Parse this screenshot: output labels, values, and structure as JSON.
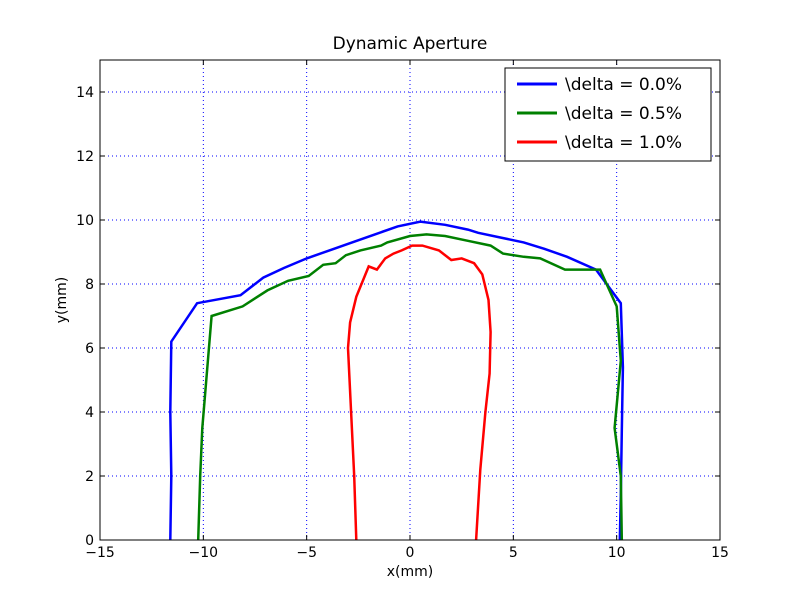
{
  "chart_data": {
    "type": "line",
    "title": "Dynamic Aperture",
    "xlabel": "x(mm)",
    "ylabel": "y(mm)",
    "xlim": [
      -15,
      15
    ],
    "ylim": [
      0,
      15
    ],
    "xticks": [
      -15,
      -10,
      -5,
      0,
      5,
      10,
      15
    ],
    "yticks": [
      0,
      2,
      4,
      6,
      8,
      10,
      12,
      14
    ],
    "xtick_labels": [
      "−15",
      "−10",
      "−5",
      "0",
      "5",
      "10",
      "15"
    ],
    "ytick_labels": [
      "0",
      "2",
      "4",
      "6",
      "8",
      "10",
      "12",
      "14"
    ],
    "grid": true,
    "legend_position": "top-right",
    "series": [
      {
        "name": "\\delta = 0.0%",
        "color": "#0000ff",
        "points": [
          [
            -11.6,
            0.0
          ],
          [
            -11.55,
            2.0
          ],
          [
            -11.6,
            4.0
          ],
          [
            -11.55,
            6.2
          ],
          [
            -10.3,
            7.4
          ],
          [
            -8.2,
            7.65
          ],
          [
            -7.1,
            8.2
          ],
          [
            -6.1,
            8.5
          ],
          [
            -5.0,
            8.8
          ],
          [
            -3.9,
            9.05
          ],
          [
            -2.8,
            9.3
          ],
          [
            -1.7,
            9.55
          ],
          [
            -0.6,
            9.8
          ],
          [
            0.5,
            9.95
          ],
          [
            1.7,
            9.85
          ],
          [
            2.8,
            9.7
          ],
          [
            3.3,
            9.6
          ],
          [
            4.4,
            9.45
          ],
          [
            5.5,
            9.3
          ],
          [
            6.5,
            9.1
          ],
          [
            7.6,
            8.85
          ],
          [
            9.0,
            8.45
          ],
          [
            10.2,
            7.4
          ],
          [
            10.3,
            5.4
          ],
          [
            10.25,
            3.4
          ],
          [
            10.2,
            1.4
          ],
          [
            10.15,
            0.0
          ]
        ]
      },
      {
        "name": "\\delta = 0.5%",
        "color": "#008000",
        "points": [
          [
            -10.25,
            0.0
          ],
          [
            -10.15,
            2.0
          ],
          [
            -10.05,
            3.5
          ],
          [
            -9.6,
            7.0
          ],
          [
            -8.1,
            7.3
          ],
          [
            -6.9,
            7.8
          ],
          [
            -5.9,
            8.1
          ],
          [
            -4.9,
            8.25
          ],
          [
            -4.2,
            8.6
          ],
          [
            -3.6,
            8.65
          ],
          [
            -3.1,
            8.9
          ],
          [
            -2.4,
            9.05
          ],
          [
            -1.4,
            9.2
          ],
          [
            -1.1,
            9.3
          ],
          [
            0.0,
            9.5
          ],
          [
            0.8,
            9.55
          ],
          [
            1.7,
            9.5
          ],
          [
            2.8,
            9.35
          ],
          [
            3.9,
            9.2
          ],
          [
            4.5,
            8.95
          ],
          [
            5.5,
            8.85
          ],
          [
            6.3,
            8.8
          ],
          [
            7.5,
            8.45
          ],
          [
            8.6,
            8.45
          ],
          [
            9.2,
            8.45
          ],
          [
            10.0,
            7.3
          ],
          [
            10.2,
            5.6
          ],
          [
            9.9,
            3.5
          ],
          [
            10.2,
            2.0
          ],
          [
            10.25,
            0.0
          ]
        ]
      },
      {
        "name": "\\delta = 1.0%",
        "color": "#ff0000",
        "points": [
          [
            -2.6,
            0.0
          ],
          [
            -2.7,
            2.0
          ],
          [
            -2.85,
            4.0
          ],
          [
            -3.0,
            6.0
          ],
          [
            -2.9,
            6.8
          ],
          [
            -2.6,
            7.6
          ],
          [
            -2.0,
            8.55
          ],
          [
            -1.6,
            8.45
          ],
          [
            -1.2,
            8.8
          ],
          [
            -0.8,
            8.95
          ],
          [
            -0.4,
            9.05
          ],
          [
            0.1,
            9.2
          ],
          [
            0.6,
            9.2
          ],
          [
            1.4,
            9.05
          ],
          [
            2.0,
            8.75
          ],
          [
            2.5,
            8.8
          ],
          [
            3.1,
            8.65
          ],
          [
            3.5,
            8.3
          ],
          [
            3.8,
            7.5
          ],
          [
            3.9,
            6.5
          ],
          [
            3.85,
            5.2
          ],
          [
            3.65,
            4.0
          ],
          [
            3.4,
            2.2
          ],
          [
            3.2,
            0.0
          ]
        ]
      }
    ]
  }
}
